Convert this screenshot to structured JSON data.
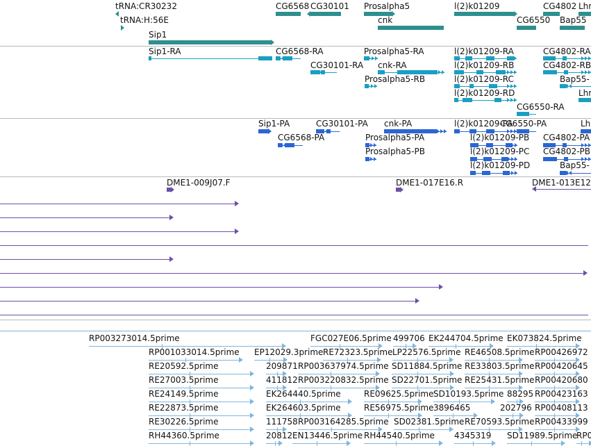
{
  "colors": {
    "gene": "#2e8f8f",
    "transcript": "#1a9fc2",
    "protein": "#2a66d6",
    "bac": "#6b4fa6",
    "est": "#7fb6de"
  },
  "tracks": {
    "genes": [
      {
        "label": "tRNA:CR30232"
      },
      {
        "label": "tRNA:H:56E"
      },
      {
        "label": "Sip1"
      },
      {
        "label": "CG6568"
      },
      {
        "label": "CG30101"
      },
      {
        "label": "Prosalpha5"
      },
      {
        "label": "cnk"
      },
      {
        "label": "l(2)k01209"
      },
      {
        "label": "CG6550"
      },
      {
        "label": "CG4802"
      },
      {
        "label": "Bap55"
      },
      {
        "label": "Lhr"
      }
    ],
    "transcripts": [
      {
        "label": "Sip1-RA"
      },
      {
        "label": "CG6568-RA"
      },
      {
        "label": "CG30101-RA"
      },
      {
        "label": "Prosalpha5-RA"
      },
      {
        "label": "cnk-RA"
      },
      {
        "label": "Prosalpha5-RB"
      },
      {
        "label": "l(2)k01209-RA"
      },
      {
        "label": "l(2)k01209-RB"
      },
      {
        "label": "l(2)k01209-RC"
      },
      {
        "label": "l(2)k01209-RD"
      },
      {
        "label": "CG6550-RA"
      },
      {
        "label": "CG4802-RA"
      },
      {
        "label": "CG4802-RB"
      },
      {
        "label": "Bap55-"
      },
      {
        "label": "Lhr"
      }
    ],
    "proteins": [
      {
        "label": "Sip1-PA"
      },
      {
        "label": "CG30101-PA"
      },
      {
        "label": "cnk-PA"
      },
      {
        "label": "l(2)k01209-PA"
      },
      {
        "label": "CG6550-PA"
      },
      {
        "label": "Lhr"
      },
      {
        "label": "CG6568-PA"
      },
      {
        "label": "Prosalpha5-PA"
      },
      {
        "label": "l(2)k01209-PB"
      },
      {
        "label": "CG4802-PA"
      },
      {
        "label": "Prosalpha5-PB"
      },
      {
        "label": "l(2)k01209-PC"
      },
      {
        "label": "CG4802-PB"
      },
      {
        "label": "l(2)k01209-PD"
      },
      {
        "label": "Bap55-"
      }
    ],
    "bacs": [
      {
        "label": "DME1-009J07.F"
      },
      {
        "label": "DME1-017E16.R"
      },
      {
        "label": "DME1-013E12"
      }
    ],
    "ests": [
      {
        "label": "RP003273014.5prime"
      },
      {
        "label": "FGC027E06.5prime"
      },
      {
        "label": "499706"
      },
      {
        "label": "EK244704.5prime"
      },
      {
        "label": "EK073824.5prime"
      },
      {
        "label": "RP001033014.5prime"
      },
      {
        "label": "EP12029.3prime"
      },
      {
        "label": "RE72323.5prime"
      },
      {
        "label": "LP22576.5prime"
      },
      {
        "label": "RE46508.5prime"
      },
      {
        "label": "RP00426972"
      },
      {
        "label": "RE20592.5prime"
      },
      {
        "label": "209871"
      },
      {
        "label": "RP003637974.5prime"
      },
      {
        "label": "SD11884.5prime"
      },
      {
        "label": "RE33803.5prime"
      },
      {
        "label": "RP00420645"
      },
      {
        "label": "RE27003.5prime"
      },
      {
        "label": "411812"
      },
      {
        "label": "RP003220832.5prime"
      },
      {
        "label": "SD22701.5prime"
      },
      {
        "label": "RE25431.5prime"
      },
      {
        "label": "RP00420680"
      },
      {
        "label": "RE24149.5prime"
      },
      {
        "label": "EK264440.5prime"
      },
      {
        "label": "RE09625.5prime"
      },
      {
        "label": "SD10193.5prime"
      },
      {
        "label": "88295"
      },
      {
        "label": "RP00423163"
      },
      {
        "label": "RE22873.5prime"
      },
      {
        "label": "EK264603.5prime"
      },
      {
        "label": "RE56975.5prime"
      },
      {
        "label": "3896465"
      },
      {
        "label": "202796"
      },
      {
        "label": "RP00408113"
      },
      {
        "label": "RE30226.5prime"
      },
      {
        "label": "111758"
      },
      {
        "label": "RP003164285.5prime"
      },
      {
        "label": "SD02381.5prime"
      },
      {
        "label": "RE70593.5prime"
      },
      {
        "label": "RP00433999"
      },
      {
        "label": "RH44360.5prime"
      },
      {
        "label": "20812"
      },
      {
        "label": "EN13446.5prime"
      },
      {
        "label": "RH44540.5prime"
      },
      {
        "label": "4345319"
      },
      {
        "label": "SD11989.5prime"
      },
      {
        "label": "RP0"
      }
    ]
  }
}
